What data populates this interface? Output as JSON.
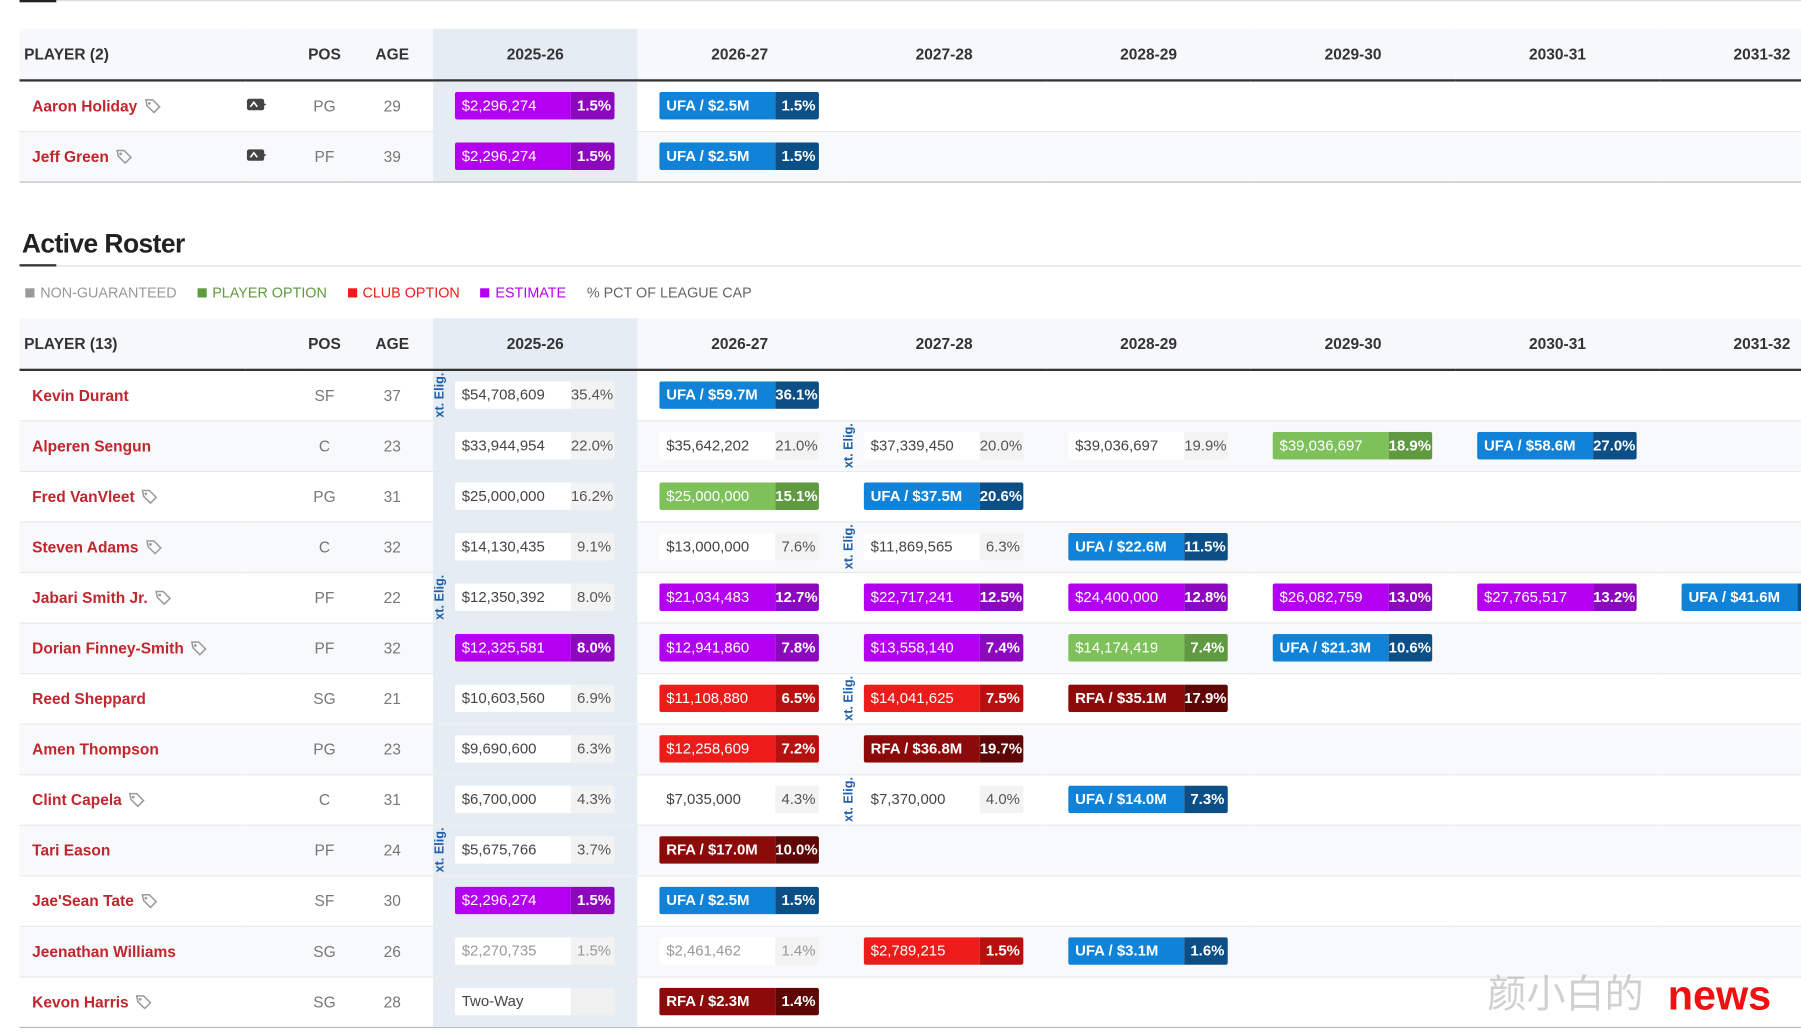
{
  "years": [
    "2025-26",
    "2026-27",
    "2027-28",
    "2028-29",
    "2029-30",
    "2030-31",
    "2031-32"
  ],
  "table1": {
    "player_header": "PLAYER (2)",
    "pos_header": "POS",
    "age_header": "AGE",
    "rows": [
      {
        "name": "Aaron Holiday",
        "pos": "PG",
        "age": "29",
        "tag": true,
        "twoway": true,
        "cells": [
          {
            "type": "est",
            "amt": "$2,296,274",
            "pct": "1.5%"
          },
          {
            "type": "ufa",
            "amt": "UFA / $2.5M",
            "pct": "1.5%"
          },
          null,
          null,
          null,
          null,
          null
        ]
      },
      {
        "name": "Jeff Green",
        "pos": "PF",
        "age": "39",
        "tag": true,
        "twoway": true,
        "cells": [
          {
            "type": "est",
            "amt": "$2,296,274",
            "pct": "1.5%"
          },
          {
            "type": "ufa",
            "amt": "UFA / $2.5M",
            "pct": "1.5%"
          },
          null,
          null,
          null,
          null,
          null
        ]
      }
    ]
  },
  "section": {
    "title": "Active Roster",
    "legend": [
      {
        "label": "NON-GUARANTEED",
        "color": "#999999"
      },
      {
        "label": "PLAYER OPTION",
        "color": "#5f9a41"
      },
      {
        "label": "CLUB OPTION",
        "color": "#ee1b1b"
      },
      {
        "label": "ESTIMATE",
        "color": "#b300f0"
      },
      {
        "label": "% PCT OF LEAGUE CAP",
        "color": "#666666"
      }
    ]
  },
  "table2": {
    "player_header": "PLAYER (13)",
    "pos_header": "POS",
    "age_header": "AGE",
    "ext_label": "xt. Elig.",
    "rows": [
      {
        "name": "Kevin Durant",
        "pos": "SF",
        "age": "37",
        "tag": false,
        "ext": [
          0
        ],
        "cells": [
          {
            "type": "plain",
            "amt": "$54,708,609",
            "pct": "35.4%"
          },
          {
            "type": "ufa",
            "amt": "UFA / $59.7M",
            "pct": "36.1%"
          },
          null,
          null,
          null,
          null,
          null
        ]
      },
      {
        "name": "Alperen Sengun",
        "pos": "C",
        "age": "23",
        "tag": false,
        "ext": [
          2
        ],
        "cells": [
          {
            "type": "plain",
            "amt": "$33,944,954",
            "pct": "22.0%"
          },
          {
            "type": "plain",
            "amt": "$35,642,202",
            "pct": "21.0%"
          },
          {
            "type": "plain",
            "amt": "$37,339,450",
            "pct": "20.0%"
          },
          {
            "type": "plain",
            "amt": "$39,036,697",
            "pct": "19.9%"
          },
          {
            "type": "po",
            "amt": "$39,036,697",
            "pct": "18.9%"
          },
          {
            "type": "ufa",
            "amt": "UFA / $58.6M",
            "pct": "27.0%"
          },
          null
        ]
      },
      {
        "name": "Fred VanVleet",
        "pos": "PG",
        "age": "31",
        "tag": true,
        "ext": [],
        "cells": [
          {
            "type": "plain",
            "amt": "$25,000,000",
            "pct": "16.2%"
          },
          {
            "type": "po",
            "amt": "$25,000,000",
            "pct": "15.1%"
          },
          {
            "type": "ufa",
            "amt": "UFA / $37.5M",
            "pct": "20.6%"
          },
          null,
          null,
          null,
          null
        ]
      },
      {
        "name": "Steven Adams",
        "pos": "C",
        "age": "32",
        "tag": true,
        "ext": [
          2
        ],
        "cells": [
          {
            "type": "plain",
            "amt": "$14,130,435",
            "pct": "9.1%"
          },
          {
            "type": "plain",
            "amt": "$13,000,000",
            "pct": "7.6%"
          },
          {
            "type": "plain",
            "amt": "$11,869,565",
            "pct": "6.3%"
          },
          {
            "type": "ufa",
            "amt": "UFA / $22.6M",
            "pct": "11.5%"
          },
          null,
          null,
          null
        ]
      },
      {
        "name": "Jabari Smith Jr.",
        "pos": "PF",
        "age": "22",
        "tag": true,
        "ext": [
          0
        ],
        "cells": [
          {
            "type": "plain",
            "amt": "$12,350,392",
            "pct": "8.0%"
          },
          {
            "type": "est",
            "amt": "$21,034,483",
            "pct": "12.7%"
          },
          {
            "type": "est",
            "amt": "$22,717,241",
            "pct": "12.5%"
          },
          {
            "type": "est",
            "amt": "$24,400,000",
            "pct": "12.8%"
          },
          {
            "type": "est",
            "amt": "$26,082,759",
            "pct": "13.0%"
          },
          {
            "type": "est",
            "amt": "$27,765,517",
            "pct": "13.2%"
          },
          {
            "type": "ufa",
            "amt": "UFA / $41.6M",
            "pct": ""
          }
        ]
      },
      {
        "name": "Dorian Finney-Smith",
        "pos": "PF",
        "age": "32",
        "tag": true,
        "ext": [],
        "cells": [
          {
            "type": "est",
            "amt": "$12,325,581",
            "pct": "8.0%"
          },
          {
            "type": "est",
            "amt": "$12,941,860",
            "pct": "7.8%"
          },
          {
            "type": "est",
            "amt": "$13,558,140",
            "pct": "7.4%"
          },
          {
            "type": "po",
            "amt": "$14,174,419",
            "pct": "7.4%"
          },
          {
            "type": "ufa",
            "amt": "UFA / $21.3M",
            "pct": "10.6%"
          },
          null,
          null
        ]
      },
      {
        "name": "Reed Sheppard",
        "pos": "SG",
        "age": "21",
        "tag": false,
        "ext": [
          2
        ],
        "cells": [
          {
            "type": "plain",
            "amt": "$10,603,560",
            "pct": "6.9%"
          },
          {
            "type": "co",
            "amt": "$11,108,880",
            "pct": "6.5%"
          },
          {
            "type": "co",
            "amt": "$14,041,625",
            "pct": "7.5%"
          },
          {
            "type": "rfa",
            "amt": "RFA / $35.1M",
            "pct": "17.9%"
          },
          null,
          null,
          null
        ]
      },
      {
        "name": "Amen Thompson",
        "pos": "PG",
        "age": "23",
        "tag": false,
        "ext": [],
        "cells": [
          {
            "type": "plain",
            "amt": "$9,690,600",
            "pct": "6.3%"
          },
          {
            "type": "co",
            "amt": "$12,258,609",
            "pct": "7.2%"
          },
          {
            "type": "rfa",
            "amt": "RFA / $36.8M",
            "pct": "19.7%"
          },
          null,
          null,
          null,
          null
        ]
      },
      {
        "name": "Clint Capela",
        "pos": "C",
        "age": "31",
        "tag": true,
        "ext": [
          2
        ],
        "cells": [
          {
            "type": "plain",
            "amt": "$6,700,000",
            "pct": "4.3%"
          },
          {
            "type": "plain",
            "amt": "$7,035,000",
            "pct": "4.3%"
          },
          {
            "type": "plain",
            "amt": "$7,370,000",
            "pct": "4.0%"
          },
          {
            "type": "ufa",
            "amt": "UFA / $14.0M",
            "pct": "7.3%"
          },
          null,
          null,
          null
        ]
      },
      {
        "name": "Tari Eason",
        "pos": "PF",
        "age": "24",
        "tag": false,
        "ext": [
          0
        ],
        "cells": [
          {
            "type": "plain",
            "amt": "$5,675,766",
            "pct": "3.7%"
          },
          {
            "type": "rfa",
            "amt": "RFA / $17.0M",
            "pct": "10.0%"
          },
          null,
          null,
          null,
          null,
          null
        ]
      },
      {
        "name": "Jae'Sean Tate",
        "pos": "SF",
        "age": "30",
        "tag": true,
        "ext": [],
        "cells": [
          {
            "type": "est",
            "amt": "$2,296,274",
            "pct": "1.5%"
          },
          {
            "type": "ufa",
            "amt": "UFA / $2.5M",
            "pct": "1.5%"
          },
          null,
          null,
          null,
          null,
          null
        ]
      },
      {
        "name": "Jeenathan Williams",
        "pos": "SG",
        "age": "26",
        "tag": false,
        "ext": [],
        "cells": [
          {
            "type": "plain ng",
            "amt": "$2,270,735",
            "pct": "1.5%"
          },
          {
            "type": "plain ng",
            "amt": "$2,461,462",
            "pct": "1.4%"
          },
          {
            "type": "co",
            "amt": "$2,789,215",
            "pct": "1.5%"
          },
          {
            "type": "ufa",
            "amt": "UFA / $3.1M",
            "pct": "1.6%"
          },
          null,
          null,
          null
        ]
      },
      {
        "name": "Kevon Harris",
        "pos": "SG",
        "age": "28",
        "tag": true,
        "ext": [],
        "cells": [
          {
            "type": "tw",
            "amt": "Two-Way",
            "pct": ""
          },
          {
            "type": "rfa",
            "amt": "RFA / $2.3M",
            "pct": "1.4%"
          },
          null,
          null,
          null,
          null,
          null
        ]
      }
    ]
  },
  "watermark": {
    "text": "颜小白的",
    "news": "news"
  }
}
